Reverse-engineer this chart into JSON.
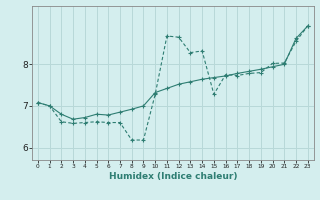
{
  "xlabel": "Humidex (Indice chaleur)",
  "bg_color": "#d4eeee",
  "grid_color": "#b8d8d8",
  "line_color": "#2e7d72",
  "xlim": [
    -0.5,
    23.5
  ],
  "ylim": [
    5.7,
    9.4
  ],
  "xticks": [
    0,
    1,
    2,
    3,
    4,
    5,
    6,
    7,
    8,
    9,
    10,
    11,
    12,
    13,
    14,
    15,
    16,
    17,
    18,
    19,
    20,
    21,
    22,
    23
  ],
  "yticks": [
    6,
    7,
    8
  ],
  "line1_x": [
    0,
    1,
    2,
    3,
    4,
    5,
    6,
    7,
    8,
    9,
    10,
    11,
    12,
    13,
    14,
    15,
    16,
    17,
    18,
    19,
    20,
    21,
    22,
    23
  ],
  "line1_y": [
    7.08,
    7.0,
    6.62,
    6.58,
    6.6,
    6.62,
    6.6,
    6.6,
    6.18,
    6.18,
    7.28,
    8.68,
    8.65,
    8.28,
    8.32,
    7.28,
    7.75,
    7.73,
    7.78,
    7.8,
    8.02,
    8.03,
    8.55,
    8.92
  ],
  "line2_x": [
    0,
    1,
    2,
    3,
    4,
    5,
    6,
    7,
    8,
    9,
    10,
    11,
    12,
    13,
    14,
    15,
    16,
    17,
    18,
    19,
    20,
    21,
    22,
    23
  ],
  "line2_y": [
    7.08,
    7.0,
    6.8,
    6.68,
    6.72,
    6.8,
    6.78,
    6.85,
    6.92,
    7.0,
    7.32,
    7.42,
    7.52,
    7.58,
    7.64,
    7.68,
    7.72,
    7.78,
    7.83,
    7.88,
    7.94,
    8.0,
    8.62,
    8.92
  ]
}
